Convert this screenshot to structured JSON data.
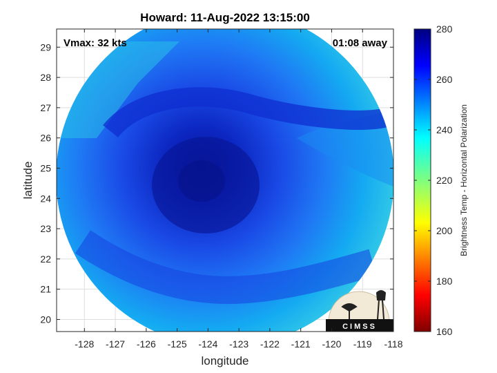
{
  "figure": {
    "title": "Howard: 11-Aug-2022 13:15:00",
    "vmax_text": "Vmax: 32 kts",
    "time_offset_text": "01:08 away",
    "xlabel": "longitude",
    "ylabel": "latitude",
    "xticks": [
      "-128",
      "-127",
      "-126",
      "-125",
      "-124",
      "-123",
      "-122",
      "-121",
      "-120",
      "-119",
      "-118"
    ],
    "yticks": [
      "29",
      "28",
      "27",
      "26",
      "25",
      "24",
      "23",
      "22",
      "21",
      "20"
    ],
    "logo_text": "CIMSS"
  },
  "colorbar": {
    "label": "Brightness Temp - Horizontal Polarization",
    "ticks": [
      "280",
      "260",
      "240",
      "220",
      "200",
      "180",
      "160"
    ],
    "range": [
      160,
      280
    ],
    "colormap": "jet"
  },
  "map": {
    "lon_range": [
      -128.9,
      -118
    ],
    "lat_range": [
      19.6,
      29.6
    ],
    "swath_center": [
      -123.35,
      24.45
    ],
    "swath_radius_deg": 5.45,
    "storm_center": [
      -123.8,
      24.6
    ],
    "colors": {
      "core": "#0a1ea8",
      "mid": "#1850f0",
      "outer": "#10aef0",
      "edge": "#40d8e0",
      "background": "#ffffff"
    }
  }
}
